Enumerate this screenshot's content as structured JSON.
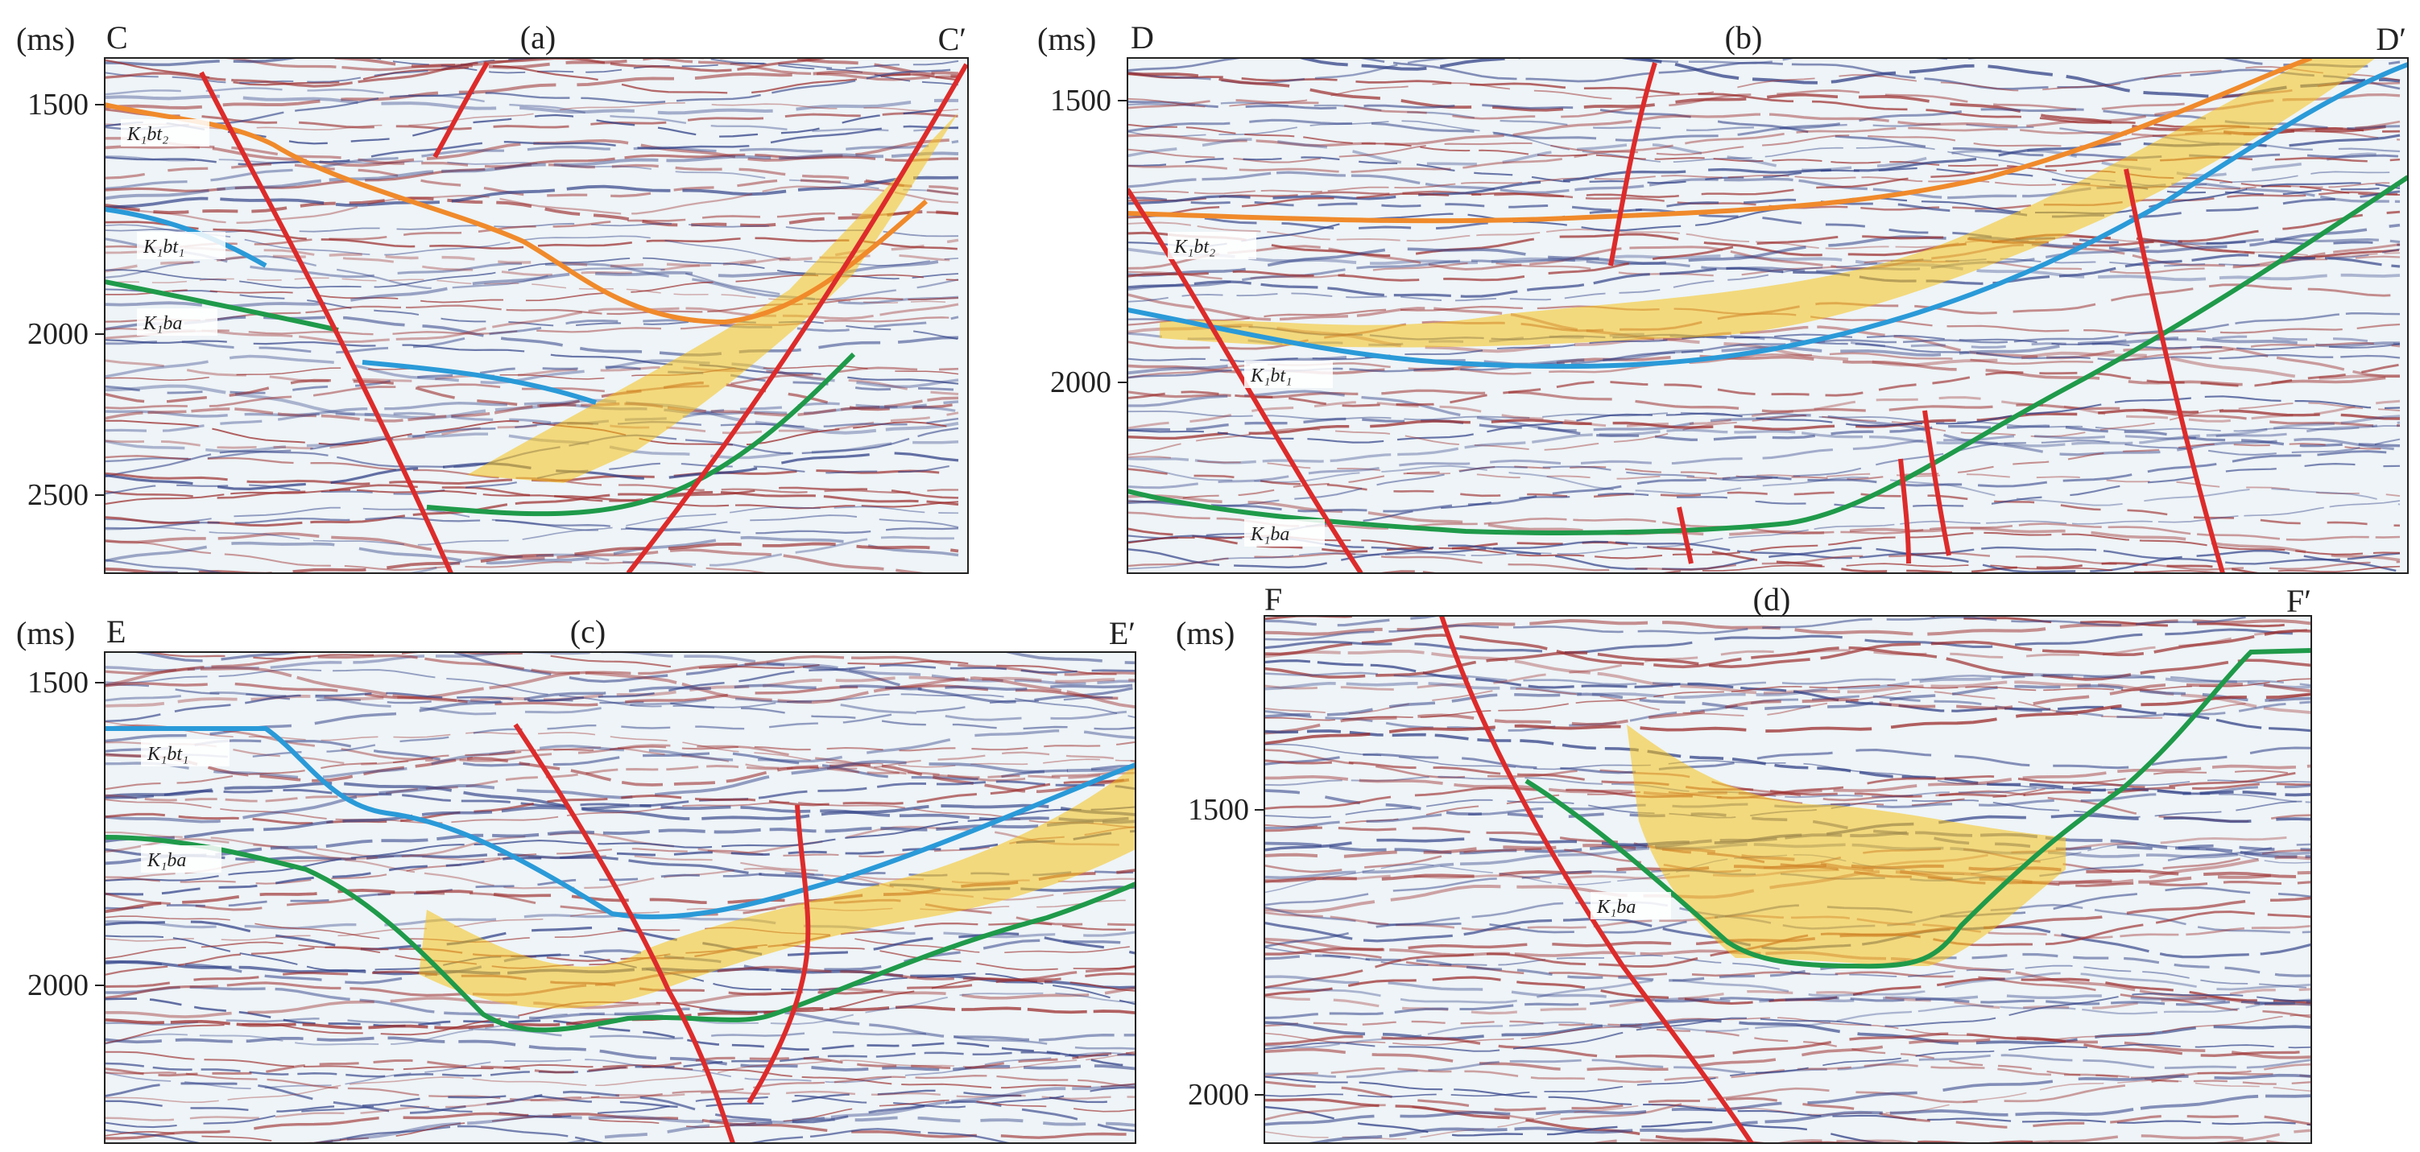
{
  "panels": [
    {
      "id": "a",
      "letter": "(a)",
      "left_end": "C",
      "right_end": "C′",
      "unit": "(ms)",
      "y_ticks": [
        "1500",
        "2000",
        "2500"
      ],
      "horizons": [
        "K₁bt₂",
        "K₁bt₁",
        "K₁ba"
      ]
    },
    {
      "id": "b",
      "letter": "(b)",
      "left_end": "D",
      "right_end": "D′",
      "unit": "(ms)",
      "y_ticks": [
        "1500",
        "2000"
      ],
      "horizons": [
        "K₁bt₂",
        "K₁bt₁",
        "K₁ba"
      ]
    },
    {
      "id": "c",
      "letter": "(c)",
      "left_end": "E",
      "right_end": "E′",
      "unit": "(ms)",
      "y_ticks": [
        "1500",
        "2000"
      ],
      "horizons": [
        "K₁bt₁",
        "K₁ba"
      ]
    },
    {
      "id": "d",
      "letter": "(d)",
      "left_end": "F",
      "right_end": "F′",
      "unit": "(ms)",
      "y_ticks": [
        "1500",
        "2000"
      ],
      "horizons": [
        "K₁ba"
      ]
    }
  ],
  "colors": {
    "fault": "#dd2b2b",
    "k1bt2": "#f08a2b",
    "k1bt1": "#2a9ad8",
    "k1ba": "#1f9a4a",
    "highlight": "#f7c21a",
    "reflector_red": "#9b2c2c",
    "reflector_blue": "#2f3f86"
  }
}
